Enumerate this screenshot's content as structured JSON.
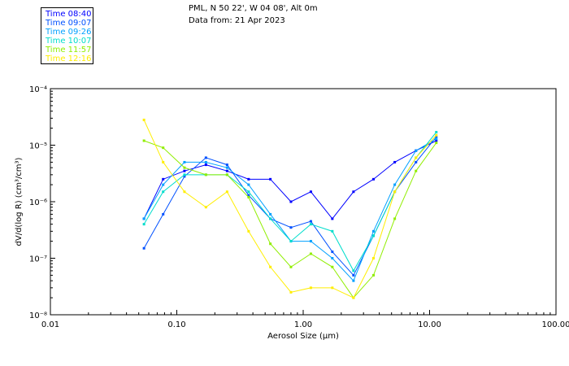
{
  "header": {
    "location": "PML, N 50 22', W 04 08', Alt 0m",
    "date": "Data from: 21 Apr 2023"
  },
  "chart_data": {
    "type": "line",
    "title": "",
    "xlabel": "Aerosol Size (μm)",
    "ylabel": "dV/d(log R) (cm³/cm³)",
    "xscale": "log",
    "yscale": "log",
    "xlim": [
      0.01,
      100
    ],
    "ylim": [
      1e-08,
      0.0001
    ],
    "x_ticks": [
      {
        "value": 0.01,
        "label": "0.01"
      },
      {
        "value": 0.1,
        "label": "0.10"
      },
      {
        "value": 1,
        "label": "1.00"
      },
      {
        "value": 10,
        "label": "10.00"
      },
      {
        "value": 100,
        "label": "100.00"
      }
    ],
    "y_ticks": [
      {
        "value": 1e-08,
        "label": "10⁻⁸"
      },
      {
        "value": 1e-07,
        "label": "10⁻⁷"
      },
      {
        "value": 1e-06,
        "label": "10⁻⁶"
      },
      {
        "value": 1e-05,
        "label": "10⁻⁵"
      },
      {
        "value": 0.0001,
        "label": "10⁻⁴"
      }
    ],
    "grid": false,
    "legend_position": "top-left",
    "x": [
      0.055,
      0.078,
      0.115,
      0.17,
      0.25,
      0.37,
      0.55,
      0.8,
      1.15,
      1.7,
      2.5,
      3.6,
      5.3,
      7.8,
      11.3
    ],
    "series": [
      {
        "name": "Time 08:40",
        "color": "#0000ff",
        "values": [
          5e-07,
          2.5e-06,
          3.5e-06,
          4.5e-06,
          3.5e-06,
          2.5e-06,
          2.5e-06,
          1e-06,
          1.5e-06,
          5e-07,
          1.5e-06,
          2.5e-06,
          5e-06,
          8e-06,
          1.2e-05
        ]
      },
      {
        "name": "Time 09:07",
        "color": "#0050ff",
        "values": [
          1.5e-07,
          6e-07,
          2.8e-06,
          6e-06,
          4.5e-06,
          1.3e-06,
          5e-07,
          3.5e-07,
          4.5e-07,
          1.3e-07,
          5e-08,
          2.5e-07,
          1.5e-06,
          5e-06,
          1.4e-05
        ]
      },
      {
        "name": "Time 09:26",
        "color": "#00a0ff",
        "values": [
          5e-07,
          2e-06,
          5e-06,
          5e-06,
          4e-06,
          2e-06,
          6e-07,
          2e-07,
          2e-07,
          1e-07,
          4e-08,
          3e-07,
          2e-06,
          8e-06,
          1.3e-05
        ]
      },
      {
        "name": "Time 10:07",
        "color": "#00ddcc",
        "values": [
          4e-07,
          1.5e-06,
          3e-06,
          3e-06,
          3e-06,
          1.5e-06,
          5e-07,
          2e-07,
          4e-07,
          3e-07,
          6e-08,
          2.5e-07,
          1.5e-06,
          6e-06,
          1.7e-05
        ]
      },
      {
        "name": "Time 11:57",
        "color": "#90ee00",
        "values": [
          1.2e-05,
          9e-06,
          4e-06,
          3e-06,
          3e-06,
          1.2e-06,
          1.8e-07,
          7e-08,
          1.2e-07,
          7e-08,
          2e-08,
          5e-08,
          5e-07,
          3.5e-06,
          1.1e-05
        ]
      },
      {
        "name": "Time 12:16",
        "color": "#ffee00",
        "values": [
          2.8e-05,
          5e-06,
          1.5e-06,
          8e-07,
          1.5e-06,
          3e-07,
          7e-08,
          2.5e-08,
          3e-08,
          3e-08,
          2e-08,
          1e-07,
          1.5e-06,
          6e-06,
          1.5e-05
        ]
      }
    ]
  }
}
